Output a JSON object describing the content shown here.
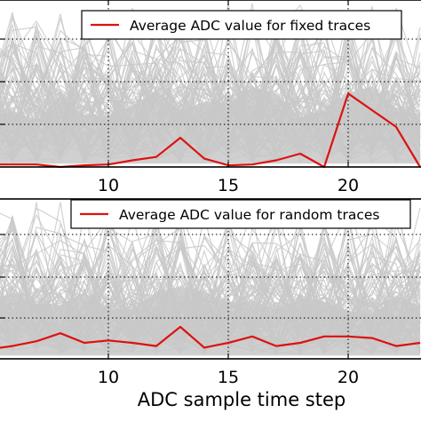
{
  "chart_data": [
    {
      "type": "line",
      "x": [
        5,
        6,
        7,
        8,
        9,
        10,
        11,
        12,
        13,
        14,
        15,
        16,
        17,
        18,
        19,
        20,
        21,
        22,
        23
      ],
      "xlim": [
        5,
        23
      ],
      "ylim": [
        0,
        1
      ],
      "xticks": [
        10,
        15,
        20
      ],
      "xtick_labels": [
        "10",
        "15",
        "20"
      ],
      "grid": true,
      "legend_position": "top-right",
      "series": [
        {
          "name": "Average ADC value for fixed traces",
          "color": "#dd1111",
          "values": [
            0.015,
            0.015,
            0.015,
            0.0,
            0.01,
            0.015,
            0.04,
            0.06,
            0.175,
            0.05,
            0.01,
            0.015,
            0.04,
            0.08,
            0.0,
            0.44,
            0.34,
            0.24,
            0.0
          ]
        }
      ],
      "background_color": "#c8c8c8"
    },
    {
      "type": "line",
      "x": [
        5,
        6,
        7,
        8,
        9,
        10,
        11,
        12,
        13,
        14,
        15,
        16,
        17,
        18,
        19,
        20,
        21,
        22,
        23
      ],
      "xlim": [
        5,
        23
      ],
      "ylim": [
        0,
        1
      ],
      "xticks": [
        10,
        15,
        20
      ],
      "xtick_labels": [
        "10",
        "15",
        "20"
      ],
      "xlabel": "ADC sample time step",
      "grid": true,
      "legend_position": "top-right",
      "series": [
        {
          "name": "Average ADC value for random traces",
          "color": "#dd1111",
          "values": [
            0.06,
            0.08,
            0.11,
            0.16,
            0.1,
            0.115,
            0.1,
            0.08,
            0.2,
            0.07,
            0.1,
            0.14,
            0.08,
            0.1,
            0.14,
            0.14,
            0.13,
            0.08,
            0.1
          ]
        }
      ],
      "background_color": "#c8c8c8"
    }
  ]
}
